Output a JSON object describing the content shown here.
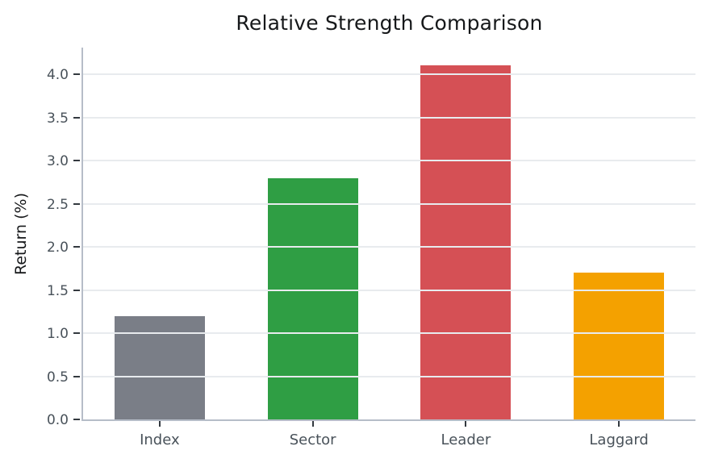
{
  "chart_data": {
    "type": "bar",
    "title": "Relative Strength Comparison",
    "xlabel": "",
    "ylabel": "Return (%)",
    "categories": [
      "Index",
      "Sector",
      "Leader",
      "Laggard"
    ],
    "values": [
      1.2,
      2.8,
      4.1,
      1.7
    ],
    "bar_colors": [
      "#7a7e87",
      "#2f9e44",
      "#d55055",
      "#f4a100"
    ],
    "yticks": [
      0.0,
      0.5,
      1.0,
      1.5,
      2.0,
      2.5,
      3.0,
      3.5,
      4.0
    ],
    "ylim": [
      0,
      4.31
    ],
    "grid": true,
    "grid_axis": "y",
    "grid_above_bars": true,
    "legend_position": "none",
    "background_color": "#ffffff",
    "spine_color": "#b6bdc8",
    "gridline_color": "#e8ebee",
    "tick_color": "#33393f",
    "tick_label_color": "#49525a",
    "title_color": "#16181a"
  }
}
